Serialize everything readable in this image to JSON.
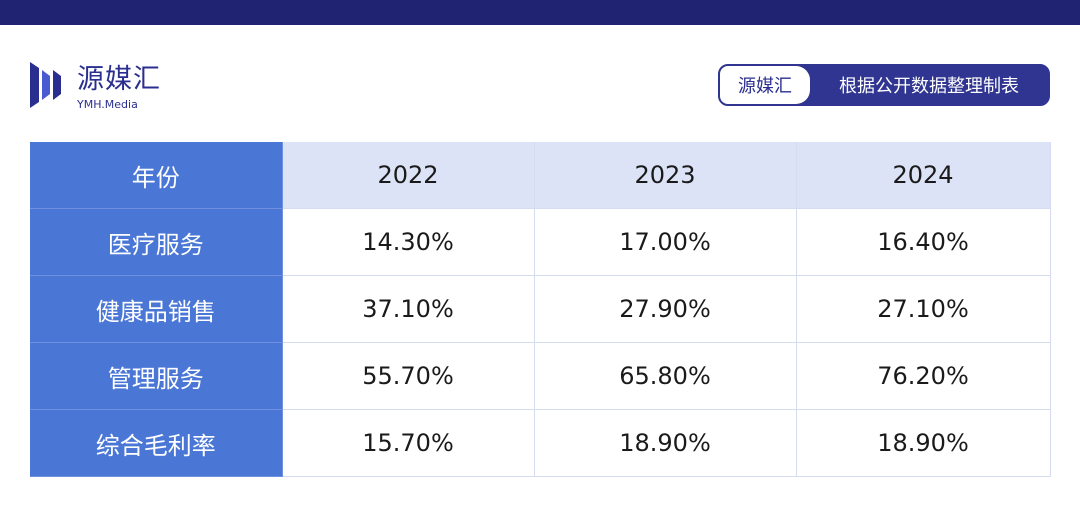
{
  "brand": {
    "name_cn": "源媒汇",
    "name_en": "YMH.Media"
  },
  "source_tag": {
    "brand": "源媒汇",
    "text": "根据公开数据整理制表"
  },
  "table": {
    "corner_header": "年份",
    "columns": [
      "2022",
      "2023",
      "2024"
    ],
    "rows": [
      {
        "label": "医疗服务",
        "values": [
          "14.30%",
          "17.00%",
          "16.40%"
        ]
      },
      {
        "label": "健康品销售",
        "values": [
          "37.10%",
          "27.90%",
          "27.10%"
        ]
      },
      {
        "label": "管理服务",
        "values": [
          "55.70%",
          "65.80%",
          "76.20%"
        ]
      },
      {
        "label": "综合毛利率",
        "values": [
          "15.70%",
          "18.90%",
          "18.90%"
        ]
      }
    ]
  },
  "colors": {
    "top_bar": "#1f2372",
    "brand": "#2a2f8f",
    "row_header": "#4a76d6",
    "column_header": "#dde3f6"
  }
}
